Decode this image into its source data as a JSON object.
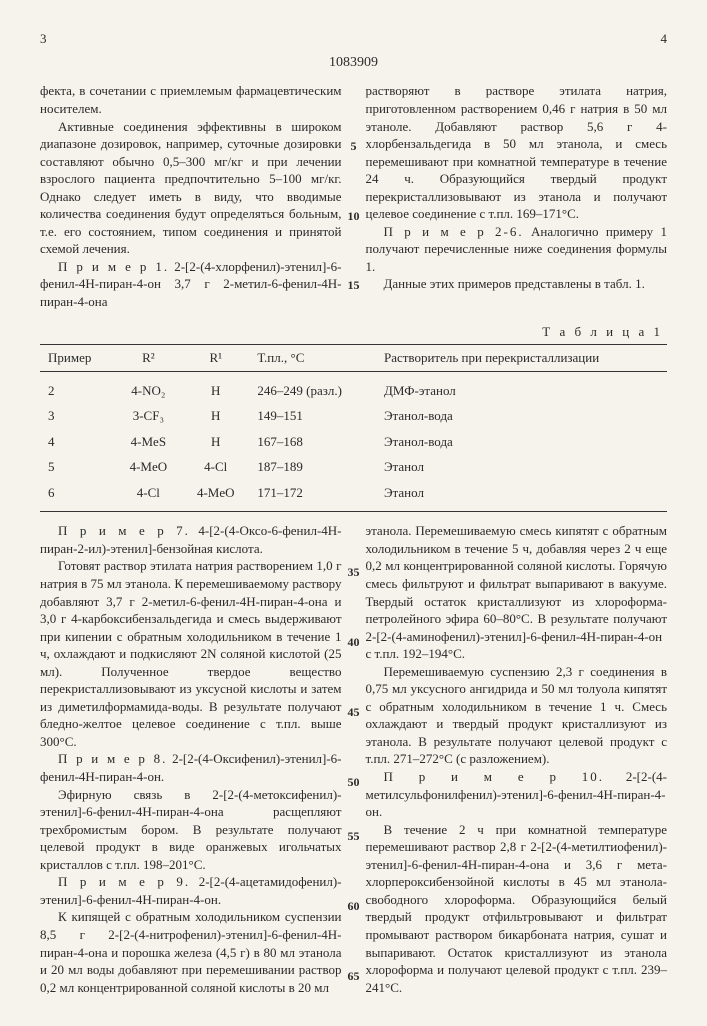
{
  "header": {
    "left_page": "3",
    "right_page": "4",
    "doc_number": "1083909"
  },
  "line_marks": [
    "5",
    "10",
    "15",
    "35",
    "40",
    "45",
    "50",
    "55",
    "60",
    "65"
  ],
  "upper": {
    "left": {
      "p1": "фекта, в сочетании с приемлемым фармацевтическим носителем.",
      "p2": "Активные соединения эффективны в широком диапазоне дозировок, например, суточные дозировки составляют обычно 0,5–300 мг/кг и при лечении взрослого пациента предпочтительно 5–100 мг/кг. Однако следует иметь в виду, что вводимые количества соединения будут определяться больным, т.е. его состоянием, типом соединения и принятой схемой лечения.",
      "p3_label": "П р и м е р 1.",
      "p3": " 2-[2-(4-хлорфенил)-этенил]-6-фенил-4H-пиран-4-он 3,7 г 2-метил-6-фенил-4H-пиран-4-она"
    },
    "right": {
      "p1": "растворяют в растворе этилата натрия, приготовленном растворением 0,46 г натрия в 50 мл этаноле. Добавляют раствор 5,6 г 4-хлорбензальдегида в 50 мл этанола, и смесь перемешивают при комнатной температуре в течение 24 ч. Образующийся твердый продукт перекристаллизовывают из этанола и получают целевое соединение с т.пл. 169–171°С.",
      "p2_label": "П р и м е р 2-6.",
      "p2": " Аналогично примеру 1 получают перечисленные ниже соединения формулы 1.",
      "p3": "Данные этих примеров представлены в табл. 1."
    }
  },
  "table": {
    "label": "Т а б л и ц а 1",
    "columns": [
      "Пример",
      "R²",
      "R¹",
      "Т.пл., °С",
      "Растворитель при перекристаллизации"
    ],
    "rows": [
      [
        "2",
        "4-NO₂",
        "H",
        "246–249 (разл.)",
        "ДМФ-этанол"
      ],
      [
        "3",
        "3-CF₃",
        "H",
        "149–151",
        "Этанол-вода"
      ],
      [
        "4",
        "4-MeS",
        "H",
        "167–168",
        "Этанол-вода"
      ],
      [
        "5",
        "4-MeO",
        "4-Cl",
        "187–189",
        "Этанол"
      ],
      [
        "6",
        "4-Cl",
        "4-MeO",
        "171–172",
        "Этанол"
      ]
    ]
  },
  "lower": {
    "left": {
      "p1_label": "П р и м е р 7.",
      "p1": " 4-[2-(4-Оксо-6-фенил-4H-пиран-2-ил)-этенил]-бензойная кислота.",
      "p2": "Готовят раствор этилата натрия растворением 1,0 г натрия в 75 мл этанола. К перемешиваемому раствору добавляют 3,7 г 2-метил-6-фенил-4H-пиран-4-она и 3,0 г 4-карбоксибензальдегида и смесь выдерживают при кипении с обратным холодильником в течение 1 ч, охлаждают и подкисляют 2N соляной кислотой (25 мл). Полученное твердое вещество перекристаллизовывают из уксусной кислоты и затем из диметилформамида-воды. В результате получают бледно-желтое целевое соединение с т.пл. выше 300°С.",
      "p3_label": "П р и м е р 8.",
      "p3": " 2-[2-(4-Оксифенил)-этенил]-6-фенил-4H-пиран-4-он.",
      "p4": "Эфирную связь в 2-[2-(4-метоксифенил)-этенил]-6-фенил-4H-пиран-4-она расщепляют трехбромистым бором. В результате получают целевой продукт в виде оранжевых игольчатых кристаллов с т.пл. 198–201°С.",
      "p5_label": "П р и м е р 9.",
      "p5": " 2-[2-(4-ацетамидофенил)-этенил]-6-фенил-4H-пиран-4-он.",
      "p6": "К кипящей с обратным холодильником суспензии 8,5 г 2-[2-(4-нитрофенил)-этенил]-6-фенил-4H-пиран-4-она и порошка железа (4,5 г) в 80 мл этанола и 20 мл воды добавляют при перемешивании раствор 0,2 мл концентрированной соляной кислоты в 20 мл"
    },
    "right": {
      "p1": "этанола. Перемешиваемую смесь кипятят с обратным холодильником в течение 5 ч, добавляя через 2 ч еще 0,2 мл концентрированной соляной кислоты. Горячую смесь фильтруют и фильтрат выпаривают в вакууме. Твердый остаток кристаллизуют из хлороформа-петролейного эфира 60–80°С. В результате получают 2-[2-(4-аминофенил)-этенил]-6-фенил-4H-пиран-4-он с т.пл. 192–194°С.",
      "p2": "Перемешиваемую суспензию 2,3 г соединения в 0,75 мл уксусного ангидрида и 50 мл толуола кипятят с обратным холодильником в течение 1 ч. Смесь охлаждают и твердый продукт кристаллизуют из этанола. В результате получают целевой продукт с т.пл. 271–272°С (с разложением).",
      "p3_label": "П р и м е р 10.",
      "p3": " 2-[2-(4-метилсульфонилфенил)-этенил]-6-фенил-4H-пиран-4-он.",
      "p4": "В течение 2 ч при комнатной температуре перемешивают раствор 2,8 г 2-[2-(4-метилтиофенил)-этенил]-6-фенил-4H-пиран-4-она и 3,6 г мета-хлорпероксибензойной кислоты в 45 мл этанола-свободного хлороформа. Образующийся белый твердый продукт отфильтровывают и фильтрат промывают раствором бикарбоната натрия, сушат и выпаривают. Остаток кристаллизуют из этанола хлороформа и получают целевой продукт с т.пл. 239–241°С."
    }
  }
}
